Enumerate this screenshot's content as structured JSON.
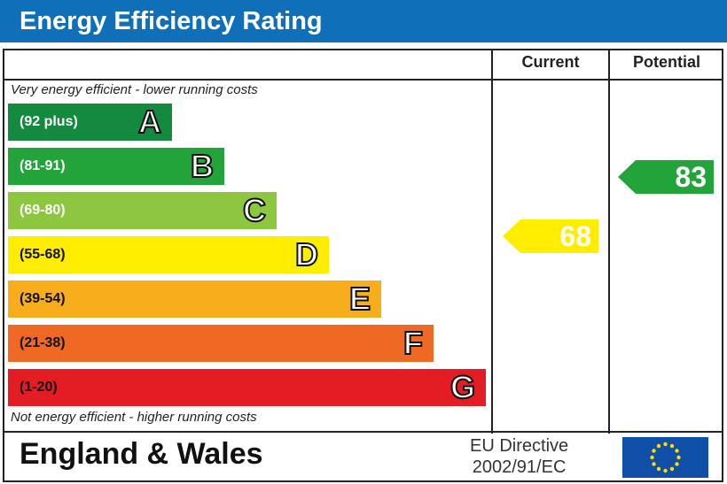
{
  "title": "Energy Efficiency Rating",
  "columns": {
    "current": "Current",
    "potential": "Potential"
  },
  "top_note": "Very energy efficient - lower running costs",
  "bottom_note": "Not energy efficient - higher running costs",
  "footer": {
    "region": "England & Wales",
    "directive_line1": "EU Directive",
    "directive_line2": "2002/91/EC",
    "flag": "eu-flag-icon"
  },
  "chart_data": {
    "type": "bar",
    "bands": [
      {
        "letter": "A",
        "range": "(92 plus)",
        "color": "#138a3d"
      },
      {
        "letter": "B",
        "range": "(81-91)",
        "color": "#22a43a"
      },
      {
        "letter": "C",
        "range": "(69-80)",
        "color": "#8dc63f"
      },
      {
        "letter": "D",
        "range": "(55-68)",
        "color": "#ffed00"
      },
      {
        "letter": "E",
        "range": "(39-54)",
        "color": "#f8ad1d"
      },
      {
        "letter": "F",
        "range": "(21-38)",
        "color": "#ee6a24"
      },
      {
        "letter": "G",
        "range": "(1-20)",
        "color": "#e31d23"
      }
    ],
    "current": {
      "value": "68",
      "band": "D",
      "color": "#ffed00"
    },
    "potential": {
      "value": "83",
      "band": "B",
      "color": "#22a43a"
    }
  }
}
